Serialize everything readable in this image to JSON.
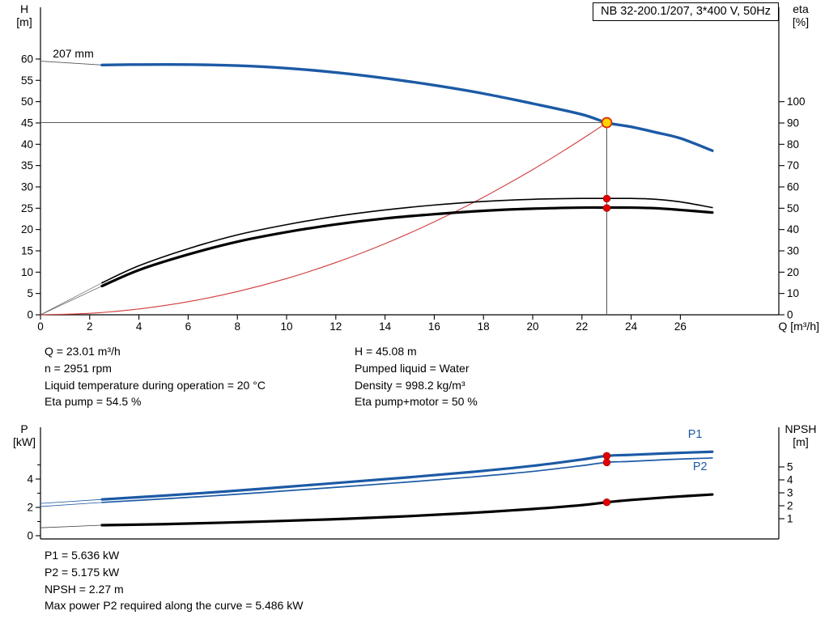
{
  "title_box": "NB 32-200.1/207, 3*400 V, 50Hz",
  "info": {
    "left": [
      "Q = 23.01 m³/h",
      "n = 2951 rpm",
      "Liquid temperature during operation = 20 °C",
      "Eta pump = 54.5 %"
    ],
    "right": [
      "H = 45.08 m",
      "Pumped liquid = Water",
      "Density = 998.2 kg/m³",
      "Eta pump+motor = 50 %"
    ]
  },
  "results": [
    "P1 = 5.636 kW",
    "P2 = 5.175 kW",
    "NPSH = 2.27 m",
    "Max power P2 required along the curve = 5.486 kW"
  ],
  "colors": {
    "curve_blue": "#1c5aa5",
    "system_red": "#d23b3b",
    "dot_red": "#e10000",
    "op_yellow": "#ffd400",
    "axis_black": "#000000"
  },
  "chart_data": [
    {
      "id": "qh-eta-curve",
      "type": "line",
      "x_label": "Q [m³/h]",
      "x_range": [
        0,
        30
      ],
      "x_ticks": [
        0,
        2,
        4,
        6,
        8,
        10,
        12,
        14,
        16,
        18,
        20,
        22,
        24,
        26
      ],
      "y_left_title": [
        "H",
        "[m]"
      ],
      "y_left_range": [
        0,
        72.14
      ],
      "y_left_ticks": [
        0,
        5,
        10,
        15,
        20,
        25,
        30,
        35,
        40,
        45,
        50,
        55,
        60
      ],
      "y_right_title": [
        "eta",
        "[%]"
      ],
      "y_right_range": [
        0,
        144.3
      ],
      "y_right_ticks": [
        0,
        10,
        20,
        30,
        40,
        50,
        60,
        70,
        80,
        90,
        100
      ],
      "operating_point": {
        "Q_m3h": 23.01,
        "H_m": 45.08,
        "eta_pump_pct": 54.5,
        "eta_pump_motor_pct": 50
      },
      "series": [
        {
          "name": "op-line-horizontal",
          "axis": "left",
          "color": "#444444",
          "width": 0.9,
          "points": [
            [
              0,
              45.08
            ],
            [
              23.01,
              45.08
            ]
          ]
        },
        {
          "name": "op-line-vertical",
          "axis": "left",
          "color": "#444444",
          "width": 0.9,
          "points": [
            [
              23.01,
              0
            ],
            [
              23.01,
              45.08
            ]
          ]
        },
        {
          "name": "system-resistance-curve",
          "axis": "left",
          "color": "#d23b3b",
          "width": 1.1,
          "points": [
            [
              0,
              0
            ],
            [
              2,
              0.34
            ],
            [
              4,
              1.36
            ],
            [
              6,
              3.07
            ],
            [
              8,
              5.45
            ],
            [
              10,
              8.51
            ],
            [
              12,
              12.26
            ],
            [
              14,
              16.69
            ],
            [
              16,
              21.8
            ],
            [
              18,
              27.58
            ],
            [
              20,
              34.06
            ],
            [
              21.5,
              39.37
            ],
            [
              22.5,
              43.11
            ],
            [
              23.01,
              45.08
            ]
          ]
        },
        {
          "name": "head-lead-in",
          "axis": "left",
          "color": "#555555",
          "width": 0.8,
          "points": [
            [
              0,
              59.5
            ],
            [
              2.5,
              58.6
            ]
          ]
        },
        {
          "name": "eta-pump-lead-in",
          "axis": "right",
          "color": "#555555",
          "width": 0.7,
          "points": [
            [
              0,
              0
            ],
            [
              2.5,
              15
            ]
          ]
        },
        {
          "name": "eta-pump-motor-lead-in",
          "axis": "right",
          "color": "#555555",
          "width": 0.7,
          "points": [
            [
              0,
              0
            ],
            [
              2.5,
              13.5
            ]
          ]
        },
        {
          "name": "eta-pump-curve",
          "axis": "right",
          "color": "#000000",
          "width": 1.6,
          "points": [
            [
              2.5,
              15
            ],
            [
              4,
              23
            ],
            [
              6,
              31
            ],
            [
              8,
              37.5
            ],
            [
              10,
              42.3
            ],
            [
              12,
              46.2
            ],
            [
              14,
              49.2
            ],
            [
              16,
              51.5
            ],
            [
              18,
              53.2
            ],
            [
              20,
              54.2
            ],
            [
              22,
              54.6
            ],
            [
              23.01,
              54.6
            ],
            [
              24,
              54.6
            ],
            [
              25,
              54.2
            ],
            [
              26,
              53
            ],
            [
              27.3,
              50.3
            ]
          ]
        },
        {
          "name": "eta-pump-motor-curve",
          "axis": "right",
          "color": "#000000",
          "width": 3.2,
          "points": [
            [
              2.5,
              13.5
            ],
            [
              4,
              21
            ],
            [
              6,
              28.3
            ],
            [
              8,
              34.3
            ],
            [
              10,
              38.8
            ],
            [
              12,
              42.4
            ],
            [
              14,
              45.2
            ],
            [
              16,
              47.2
            ],
            [
              18,
              48.8
            ],
            [
              20,
              49.8
            ],
            [
              22,
              50.3
            ],
            [
              23.01,
              50.3
            ],
            [
              24,
              50.3
            ],
            [
              25,
              50
            ],
            [
              26,
              49.2
            ],
            [
              27.3,
              48
            ]
          ]
        },
        {
          "name": "head-curve-207mm",
          "axis": "left",
          "color": "#1c5aa5",
          "width": 3.4,
          "points": [
            [
              2.5,
              58.6
            ],
            [
              4,
              58.7
            ],
            [
              6,
              58.7
            ],
            [
              8,
              58.45
            ],
            [
              10,
              57.85
            ],
            [
              12,
              56.85
            ],
            [
              14,
              55.5
            ],
            [
              16,
              53.85
            ],
            [
              18,
              51.9
            ],
            [
              20,
              49.55
            ],
            [
              22,
              47
            ],
            [
              23.01,
              45.08
            ],
            [
              24,
              44.1
            ],
            [
              25,
              42.8
            ],
            [
              26,
              41.4
            ],
            [
              27.3,
              38.5
            ]
          ]
        }
      ],
      "markers": [
        {
          "name": "duty-point",
          "x": 23.01,
          "y": 45.08,
          "axis": "left",
          "r": 6,
          "fill": "#ffd400",
          "stroke": "#e03000",
          "sw": 1.8
        },
        {
          "name": "eta-pump-dot",
          "x": 23.01,
          "y": 54.5,
          "axis": "right",
          "r": 4.4,
          "fill": "#e10000",
          "stroke": "#9d0000",
          "sw": 0.6
        },
        {
          "name": "eta-pump-motor-dot",
          "x": 23.01,
          "y": 50.1,
          "axis": "right",
          "r": 4.4,
          "fill": "#e10000",
          "stroke": "#9d0000",
          "sw": 0.6
        }
      ],
      "annotations": [
        {
          "text": "207 mm",
          "x": 0.5,
          "y": 60.4,
          "axis": "left",
          "anchor": "start",
          "size": 14,
          "color": "#000000"
        }
      ]
    },
    {
      "id": "power-npsh-curve",
      "type": "line",
      "x_label": "",
      "x_range": [
        0,
        30
      ],
      "x_ticks": [],
      "y_left_title": [
        "P",
        "[kW]"
      ],
      "y_left_range": [
        -0.229,
        7.657
      ],
      "y_left_ticks": [
        0,
        2,
        4
      ],
      "y_left_minor": [
        1,
        3,
        5
      ],
      "y_right_title": [
        "NPSH",
        "[m]"
      ],
      "y_right_range": [
        -0.5625,
        8.0625
      ],
      "y_right_ticks": [
        1,
        2,
        3,
        4,
        5
      ],
      "values": {
        "P1_kW": 5.636,
        "P2_kW": 5.175,
        "NPSH_m": 2.27,
        "max_P2_along_curve_kW": 5.486
      },
      "series": [
        {
          "name": "p1-lead-in",
          "axis": "left",
          "color": "#1c5aa5",
          "width": 0.8,
          "points": [
            [
              0,
              2.28
            ],
            [
              2.5,
              2.56
            ]
          ]
        },
        {
          "name": "p2-lead-in",
          "axis": "left",
          "color": "#1c5aa5",
          "width": 0.8,
          "points": [
            [
              0,
              2.06
            ],
            [
              2.5,
              2.35
            ]
          ]
        },
        {
          "name": "npsh-lead-in",
          "axis": "right",
          "color": "#444444",
          "width": 0.8,
          "points": [
            [
              0,
              0.3
            ],
            [
              2.5,
              0.5
            ]
          ]
        },
        {
          "name": "p2-curve",
          "axis": "left",
          "color": "#1c5aa5",
          "width": 1.7,
          "points": [
            [
              2.5,
              2.35
            ],
            [
              5,
              2.6
            ],
            [
              7.5,
              2.87
            ],
            [
              10,
              3.17
            ],
            [
              12.5,
              3.48
            ],
            [
              15,
              3.8
            ],
            [
              17.5,
              4.14
            ],
            [
              20,
              4.54
            ],
            [
              22,
              4.95
            ],
            [
              23.01,
              5.18
            ],
            [
              24,
              5.25
            ],
            [
              25.5,
              5.38
            ],
            [
              27.3,
              5.49
            ]
          ]
        },
        {
          "name": "p1-curve",
          "axis": "left",
          "color": "#1c5aa5",
          "width": 3.2,
          "points": [
            [
              2.5,
              2.56
            ],
            [
              5,
              2.83
            ],
            [
              7.5,
              3.12
            ],
            [
              10,
              3.45
            ],
            [
              12.5,
              3.79
            ],
            [
              15,
              4.13
            ],
            [
              17.5,
              4.5
            ],
            [
              20,
              4.93
            ],
            [
              22,
              5.38
            ],
            [
              23.01,
              5.64
            ],
            [
              24,
              5.71
            ],
            [
              25.5,
              5.82
            ],
            [
              27.3,
              5.93
            ]
          ]
        },
        {
          "name": "npsh-curve",
          "axis": "right",
          "color": "#000000",
          "width": 3.2,
          "points": [
            [
              2.5,
              0.5
            ],
            [
              5,
              0.58
            ],
            [
              7.5,
              0.7
            ],
            [
              10,
              0.84
            ],
            [
              12.5,
              1.0
            ],
            [
              15,
              1.2
            ],
            [
              17.5,
              1.45
            ],
            [
              20,
              1.75
            ],
            [
              22,
              2.05
            ],
            [
              23.01,
              2.27
            ],
            [
              24,
              2.45
            ],
            [
              25.5,
              2.66
            ],
            [
              27.3,
              2.87
            ]
          ]
        }
      ],
      "markers": [
        {
          "name": "p1-dot",
          "x": 23.01,
          "y": 5.636,
          "axis": "left",
          "r": 4.4,
          "fill": "#e10000",
          "stroke": "#9d0000",
          "sw": 0.6
        },
        {
          "name": "p2-dot",
          "x": 23.01,
          "y": 5.175,
          "axis": "left",
          "r": 4.4,
          "fill": "#e10000",
          "stroke": "#9d0000",
          "sw": 0.6
        },
        {
          "name": "npsh-dot",
          "x": 23.01,
          "y": 2.27,
          "axis": "right",
          "r": 4.4,
          "fill": "#e10000",
          "stroke": "#9d0000",
          "sw": 0.6
        }
      ],
      "annotations": [
        {
          "text": "P1",
          "x": 26.6,
          "y": 6.9,
          "axis": "left",
          "anchor": "middle",
          "size": 14.5,
          "color": "#1c5aa5"
        },
        {
          "text": "P2",
          "x": 26.8,
          "y": 4.62,
          "axis": "left",
          "anchor": "middle",
          "size": 14.5,
          "color": "#1c5aa5"
        }
      ]
    }
  ]
}
